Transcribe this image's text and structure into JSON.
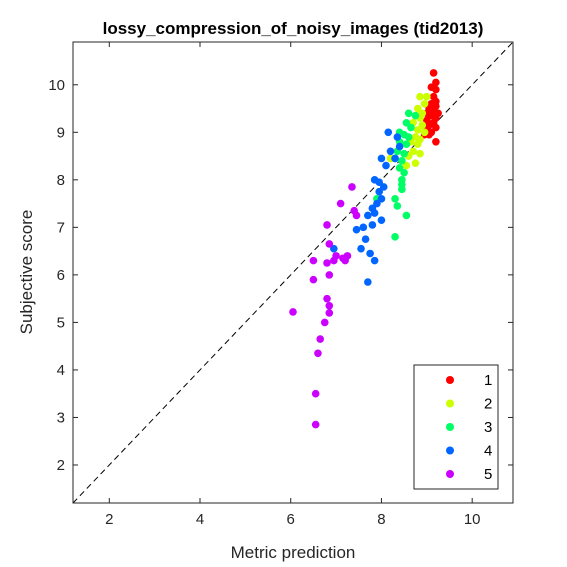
{
  "chart_data": {
    "type": "scatter",
    "title": "lossy_compression_of_noisy_images (tid2013)",
    "xlabel": "Metric prediction",
    "ylabel": "Subjective score",
    "xlim": [
      1.2,
      10.9
    ],
    "ylim": [
      1.2,
      10.9
    ],
    "xticks": [
      2,
      4,
      6,
      8,
      10
    ],
    "yticks": [
      2,
      3,
      4,
      5,
      6,
      7,
      8,
      9,
      10
    ],
    "grid": false,
    "diagonal_reference_line": true,
    "legend_position": "bottom-right",
    "series": [
      {
        "name": "1",
        "color": "#ff0000",
        "points": [
          [
            9.15,
            10.25
          ],
          [
            9.2,
            10.05
          ],
          [
            9.1,
            9.95
          ],
          [
            9.2,
            9.9
          ],
          [
            9.15,
            9.75
          ],
          [
            9.2,
            9.65
          ],
          [
            9.1,
            9.6
          ],
          [
            9.2,
            9.55
          ],
          [
            9.05,
            9.5
          ],
          [
            9.15,
            9.45
          ],
          [
            9.0,
            9.4
          ],
          [
            9.25,
            9.4
          ],
          [
            9.1,
            9.35
          ],
          [
            9.2,
            9.3
          ],
          [
            9.0,
            9.25
          ],
          [
            9.15,
            9.2
          ],
          [
            9.05,
            9.15
          ],
          [
            9.2,
            9.1
          ],
          [
            9.0,
            9.05
          ],
          [
            9.1,
            9.0
          ],
          [
            8.95,
            8.95
          ],
          [
            9.05,
            8.95
          ],
          [
            9.2,
            8.8
          ]
        ]
      },
      {
        "name": "2",
        "color": "#ccff00",
        "points": [
          [
            8.85,
            9.75
          ],
          [
            9.0,
            9.75
          ],
          [
            8.95,
            9.6
          ],
          [
            8.8,
            9.5
          ],
          [
            8.9,
            9.4
          ],
          [
            8.75,
            9.35
          ],
          [
            8.85,
            9.3
          ],
          [
            8.7,
            9.2
          ],
          [
            8.9,
            9.15
          ],
          [
            8.8,
            9.05
          ],
          [
            8.95,
            9.0
          ],
          [
            8.75,
            8.9
          ],
          [
            8.85,
            8.85
          ],
          [
            8.65,
            8.8
          ],
          [
            8.8,
            8.75
          ],
          [
            8.7,
            8.6
          ],
          [
            8.85,
            8.55
          ],
          [
            8.6,
            8.5
          ],
          [
            8.75,
            8.35
          ],
          [
            8.55,
            8.3
          ],
          [
            8.2,
            8.45
          ]
        ]
      },
      {
        "name": "3",
        "color": "#00ff66",
        "points": [
          [
            8.6,
            9.4
          ],
          [
            8.75,
            9.35
          ],
          [
            8.55,
            9.2
          ],
          [
            8.65,
            9.1
          ],
          [
            8.4,
            9.0
          ],
          [
            8.5,
            8.95
          ],
          [
            8.6,
            8.9
          ],
          [
            8.4,
            8.8
          ],
          [
            8.55,
            8.75
          ],
          [
            8.35,
            8.6
          ],
          [
            8.5,
            8.55
          ],
          [
            8.3,
            8.45
          ],
          [
            8.45,
            8.4
          ],
          [
            8.4,
            8.25
          ],
          [
            8.5,
            8.15
          ],
          [
            8.45,
            8.0
          ],
          [
            8.45,
            7.9
          ],
          [
            8.45,
            7.8
          ],
          [
            8.3,
            7.6
          ],
          [
            8.35,
            7.45
          ],
          [
            7.9,
            7.6
          ],
          [
            8.55,
            7.25
          ],
          [
            8.3,
            6.8
          ]
        ]
      },
      {
        "name": "4",
        "color": "#0066ff",
        "points": [
          [
            8.15,
            9.0
          ],
          [
            8.35,
            8.9
          ],
          [
            8.4,
            8.7
          ],
          [
            8.2,
            8.6
          ],
          [
            8.3,
            8.45
          ],
          [
            8.0,
            8.45
          ],
          [
            8.1,
            8.3
          ],
          [
            7.85,
            8.0
          ],
          [
            7.95,
            7.95
          ],
          [
            8.05,
            7.85
          ],
          [
            7.95,
            7.75
          ],
          [
            8.0,
            7.6
          ],
          [
            7.9,
            7.5
          ],
          [
            7.8,
            7.4
          ],
          [
            7.85,
            7.3
          ],
          [
            7.7,
            7.25
          ],
          [
            8.0,
            7.15
          ],
          [
            7.8,
            7.05
          ],
          [
            7.6,
            7.0
          ],
          [
            7.45,
            6.95
          ],
          [
            7.65,
            6.75
          ],
          [
            6.95,
            6.55
          ],
          [
            7.55,
            6.55
          ],
          [
            7.85,
            6.3
          ],
          [
            7.75,
            6.45
          ],
          [
            7.7,
            5.85
          ]
        ]
      },
      {
        "name": "5",
        "color": "#cc00ff",
        "points": [
          [
            7.35,
            7.85
          ],
          [
            7.1,
            7.5
          ],
          [
            6.8,
            7.05
          ],
          [
            7.4,
            7.35
          ],
          [
            7.45,
            7.25
          ],
          [
            6.85,
            6.65
          ],
          [
            7.0,
            6.4
          ],
          [
            7.15,
            6.35
          ],
          [
            7.25,
            6.4
          ],
          [
            7.2,
            6.3
          ],
          [
            6.95,
            6.3
          ],
          [
            6.8,
            6.25
          ],
          [
            6.5,
            6.3
          ],
          [
            6.85,
            6.0
          ],
          [
            6.5,
            5.9
          ],
          [
            6.8,
            5.5
          ],
          [
            6.85,
            5.35
          ],
          [
            6.85,
            5.2
          ],
          [
            6.75,
            5.0
          ],
          [
            6.05,
            5.22
          ],
          [
            6.65,
            4.65
          ],
          [
            6.6,
            4.35
          ],
          [
            6.55,
            3.5
          ],
          [
            6.55,
            2.85
          ]
        ]
      }
    ]
  }
}
